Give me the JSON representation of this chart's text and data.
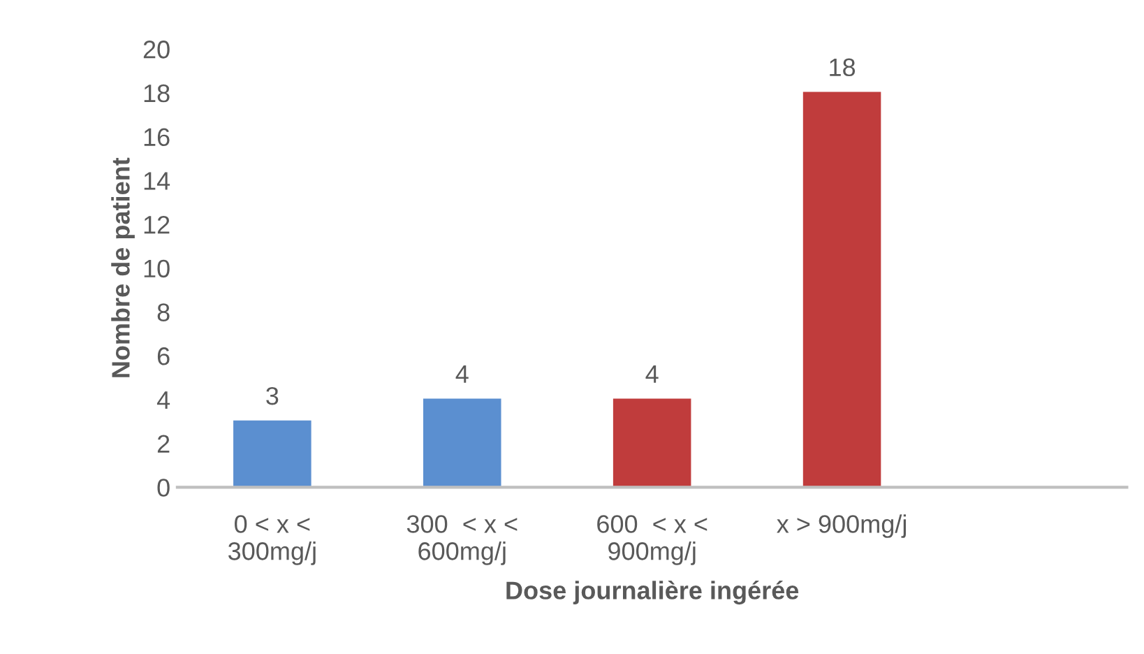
{
  "chart_data": {
    "type": "bar",
    "xlabel": "Dose journalière ingérée",
    "ylabel": "Nombre de patient",
    "categories": [
      "0 < x <\n300mg/j",
      "300  < x <\n600mg/j",
      "600  < x <\n900mg/j",
      "x > 900mg/j",
      null
    ],
    "values": [
      3,
      4,
      4,
      18,
      null
    ],
    "colors": [
      "#5b8fd0",
      "#5b8fd0",
      "#c03c3c",
      "#c03c3c",
      "#c03c3c"
    ],
    "ylim": [
      0,
      20
    ],
    "yticks": [
      0,
      2,
      4,
      6,
      8,
      10,
      12,
      14,
      16,
      18,
      20
    ],
    "grid": false,
    "legend": false,
    "data_labels": true
  }
}
